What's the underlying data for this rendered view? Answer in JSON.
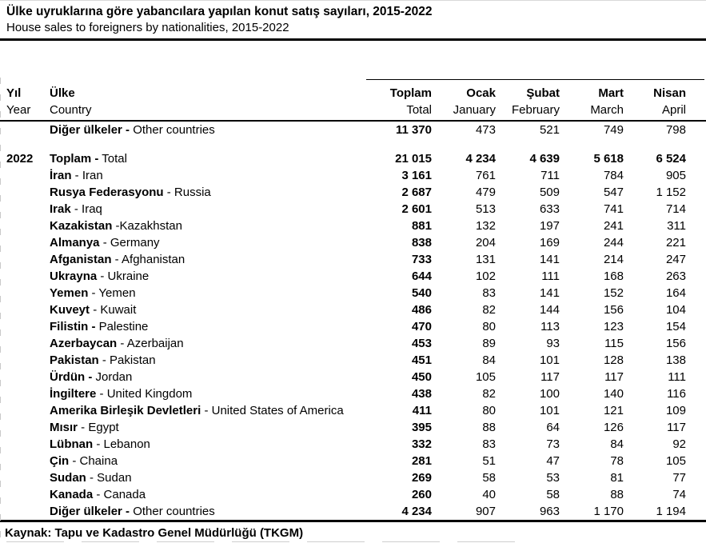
{
  "title": "Ülke uyruklarına göre yabancılara yapılan konut satış sayıları, 2015-2022",
  "subtitle": "House sales to foreigners by nationalities, 2015-2022",
  "header": {
    "year_tr": "Yıl",
    "year_en": "Year",
    "country_tr": "Ülke",
    "country_en": "Country",
    "columns": [
      {
        "tr": "Toplam",
        "en": "Total"
      },
      {
        "tr": "Ocak",
        "en": "January"
      },
      {
        "tr": "Şubat",
        "en": "February"
      },
      {
        "tr": "Mart",
        "en": "March"
      },
      {
        "tr": "Nisan",
        "en": "April"
      }
    ]
  },
  "table": {
    "rows": [
      {
        "year": "",
        "name_bold": "Diğer ülkeler -",
        "name_rest": " Other countries",
        "values": [
          "11 370",
          "473",
          "521",
          "749",
          "798"
        ],
        "all_bold": false,
        "gap_after": true
      },
      {
        "year": "2022",
        "name_bold": "Toplam -",
        "name_rest": " Total",
        "values": [
          "21 015",
          "4 234",
          "4 639",
          "5 618",
          "6 524"
        ],
        "all_bold": true
      },
      {
        "year": "",
        "name_bold": "İran",
        "name_rest": " - Iran",
        "values": [
          "3 161",
          "761",
          "711",
          "784",
          "905"
        ]
      },
      {
        "year": "",
        "name_bold": "Rusya Federasyonu",
        "name_rest": " - Russia",
        "values": [
          "2 687",
          "479",
          "509",
          "547",
          "1 152"
        ]
      },
      {
        "year": "",
        "name_bold": "Irak",
        "name_rest": " - Iraq",
        "values": [
          "2 601",
          "513",
          "633",
          "741",
          "714"
        ]
      },
      {
        "year": "",
        "name_bold": "Kazakistan",
        "name_rest": " -Kazakhstan",
        "values": [
          "881",
          "132",
          "197",
          "241",
          "311"
        ]
      },
      {
        "year": "",
        "name_bold": "Almanya",
        "name_rest": " - Germany",
        "values": [
          "838",
          "204",
          "169",
          "244",
          "221"
        ]
      },
      {
        "year": "",
        "name_bold": "Afganistan",
        "name_rest": " - Afghanistan",
        "values": [
          "733",
          "131",
          "141",
          "214",
          "247"
        ]
      },
      {
        "year": "",
        "name_bold": "Ukrayna",
        "name_rest": " - Ukraine",
        "values": [
          "644",
          "102",
          "111",
          "168",
          "263"
        ]
      },
      {
        "year": "",
        "name_bold": "Yemen",
        "name_rest": " - Yemen",
        "values": [
          "540",
          "83",
          "141",
          "152",
          "164"
        ]
      },
      {
        "year": "",
        "name_bold": "Kuveyt",
        "name_rest": " - Kuwait",
        "values": [
          "486",
          "82",
          "144",
          "156",
          "104"
        ]
      },
      {
        "year": "",
        "name_bold": "Filistin -",
        "name_rest": " Palestine",
        "values": [
          "470",
          "80",
          "113",
          "123",
          "154"
        ]
      },
      {
        "year": "",
        "name_bold": "Azerbaycan",
        "name_rest": " - Azerbaijan",
        "values": [
          "453",
          "89",
          "93",
          "115",
          "156"
        ]
      },
      {
        "year": "",
        "name_bold": "Pakistan",
        "name_rest": " - Pakistan",
        "values": [
          "451",
          "84",
          "101",
          "128",
          "138"
        ]
      },
      {
        "year": "",
        "name_bold": "Ürdün -",
        "name_rest": " Jordan",
        "values": [
          "450",
          "105",
          "117",
          "117",
          "111"
        ]
      },
      {
        "year": "",
        "name_bold": "İngiltere",
        "name_rest": " - United Kingdom",
        "values": [
          "438",
          "82",
          "100",
          "140",
          "116"
        ]
      },
      {
        "year": "",
        "name_bold": "Amerika Birleşik Devletleri",
        "name_rest": " - United States of America",
        "values": [
          "411",
          "80",
          "101",
          "121",
          "109"
        ]
      },
      {
        "year": "",
        "name_bold": "Mısır",
        "name_rest": " - Egypt",
        "values": [
          "395",
          "88",
          "64",
          "126",
          "117"
        ]
      },
      {
        "year": "",
        "name_bold": "Lübnan",
        "name_rest": " - Lebanon",
        "values": [
          "332",
          "83",
          "73",
          "84",
          "92"
        ]
      },
      {
        "year": "",
        "name_bold": "Çin",
        "name_rest": " - Chaina",
        "values": [
          "281",
          "51",
          "47",
          "78",
          "105"
        ]
      },
      {
        "year": "",
        "name_bold": "Sudan",
        "name_rest": " - Sudan",
        "values": [
          "269",
          "58",
          "53",
          "81",
          "77"
        ]
      },
      {
        "year": "",
        "name_bold": "Kanada",
        "name_rest": " - Canada",
        "values": [
          "260",
          "40",
          "58",
          "88",
          "74"
        ]
      },
      {
        "year": "",
        "name_bold": "Diğer ülkeler -",
        "name_rest": " Other countries",
        "values": [
          "4 234",
          "907",
          "963",
          "1 170",
          "1 194"
        ]
      }
    ]
  },
  "source": "Kaynak: Tapu ve Kadastro Genel Müdürlüğü (TKGM)",
  "colors": {
    "text": "#000000",
    "rule": "#000000",
    "gridline": "#cfcfcf"
  }
}
